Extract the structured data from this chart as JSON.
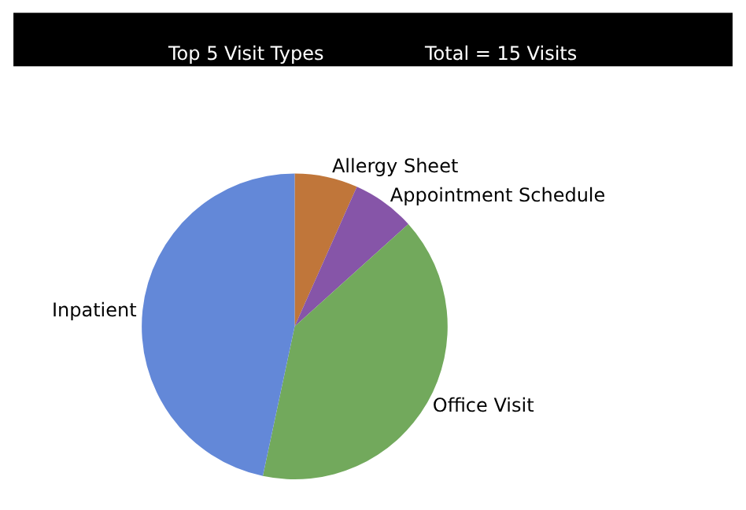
{
  "chart_data": {
    "type": "pie",
    "title": "Top 5 Visit Types",
    "subtitle": "Total = 15 Visits",
    "categories": [
      "Allergy Sheet",
      "Appointment Schedule",
      "Office Visit",
      "Inpatient"
    ],
    "values": [
      6.67,
      6.67,
      40,
      46.66
    ],
    "colors": [
      "#c0763a",
      "#8655a8",
      "#72a95c",
      "#6388d8"
    ],
    "legend": false
  }
}
